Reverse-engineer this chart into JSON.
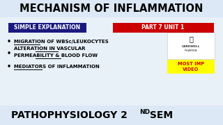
{
  "bg_color": "#e8f0f8",
  "title_bar_color": "#dce8f5",
  "title_text": "MECHANISM OF INFLAMMATION",
  "title_color": "#000000",
  "title_fontsize": 10.5,
  "badge1_text": "SIMPLE EXPLANATION",
  "badge1_bg": "#1a1a7e",
  "badge1_color": "#ffffff",
  "badge2_text": "PART 7 UNIT 1",
  "badge2_bg": "#cc0000",
  "badge2_color": "#ffffff",
  "badge_fontsize": 5.5,
  "bullet1": "MIGRATION OF WBSc/LEUKOCYTES",
  "bullet2a": "ALTERATION IN VASCULAR",
  "bullet2b": "PERMEABILITY & BLOOD FLOW",
  "bullet3": "MEDIATORS OF INFLAMMATION",
  "bullet_fontsize": 5.0,
  "footer_text": "PATHOPHYSIOLOGY 2",
  "footer_sup": "ND",
  "footer_text2": " SEM",
  "footer_color": "#000000",
  "footer_fontsize": 10.0,
  "most_imp_bg": "#ffff00",
  "most_imp_color": "#cc0000",
  "most_imp_text": "MOST IMP\nVIDEO",
  "most_imp_fontsize": 4.8,
  "logo_bg": "#ffffff",
  "logo_border": "#cccccc"
}
